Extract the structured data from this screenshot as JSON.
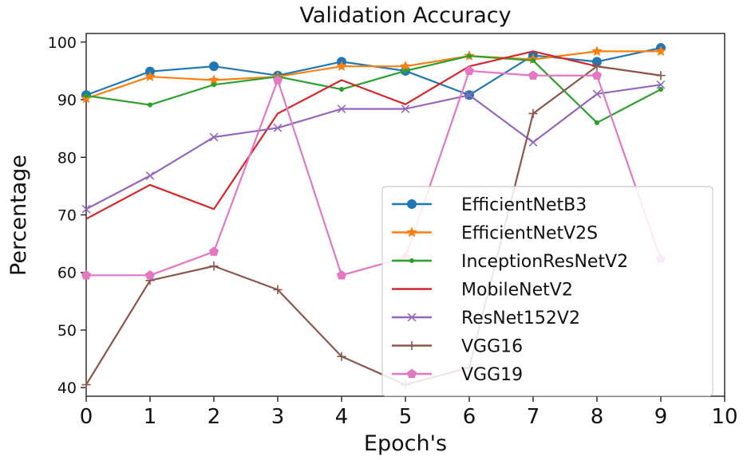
{
  "chart_data": {
    "type": "line",
    "title": "Validation Accuracy",
    "xlabel": "Epoch's",
    "ylabel": "Percentage",
    "xlim": [
      0,
      10
    ],
    "ylim": [
      38.5,
      101.5
    ],
    "xticks": [
      0,
      1,
      2,
      3,
      4,
      5,
      6,
      7,
      8,
      9,
      10
    ],
    "yticks": [
      40,
      50,
      60,
      70,
      80,
      90,
      100
    ],
    "grid": false,
    "legend_position": "center-right",
    "x": [
      0,
      1,
      2,
      3,
      4,
      5,
      6,
      7,
      8,
      9
    ],
    "series": [
      {
        "name": "EfficientNetB3",
        "color": "#1f77b4",
        "marker": "circle",
        "values": [
          90.8,
          94.9,
          95.8,
          94.2,
          96.6,
          95.0,
          90.8,
          97.7,
          96.6,
          99.0
        ]
      },
      {
        "name": "EfficientNetV2S",
        "color": "#ff7f0e",
        "marker": "star",
        "values": [
          90.2,
          94.0,
          93.4,
          94.0,
          95.8,
          95.8,
          97.6,
          97.0,
          98.4,
          98.4
        ]
      },
      {
        "name": "InceptionResNetV2",
        "color": "#2ca02c",
        "marker": "point",
        "values": [
          90.7,
          89.1,
          92.6,
          94.0,
          91.8,
          95.0,
          97.6,
          96.8,
          86.0,
          91.8
        ]
      },
      {
        "name": "MobileNetV2",
        "color": "#d62728",
        "marker": "none",
        "values": [
          69.3,
          75.2,
          71.0,
          87.6,
          93.4,
          89.2,
          95.8,
          98.4,
          95.8,
          94.2
        ]
      },
      {
        "name": "ResNet152V2",
        "color": "#9467bd",
        "marker": "x",
        "values": [
          71.0,
          76.8,
          83.5,
          85.1,
          88.4,
          88.4,
          90.8,
          82.6,
          91.0,
          92.6
        ]
      },
      {
        "name": "VGG16",
        "color": "#8c564b",
        "marker": "plus",
        "values": [
          40.5,
          58.6,
          61.1,
          57.0,
          45.4,
          40.5,
          43.5,
          87.6,
          95.8,
          94.2
        ]
      },
      {
        "name": "VGG19",
        "color": "#e377c2",
        "marker": "pentagon",
        "values": [
          59.5,
          59.5,
          63.6,
          93.4,
          59.5,
          62.6,
          95.0,
          94.2,
          94.2,
          62.3
        ]
      }
    ]
  }
}
